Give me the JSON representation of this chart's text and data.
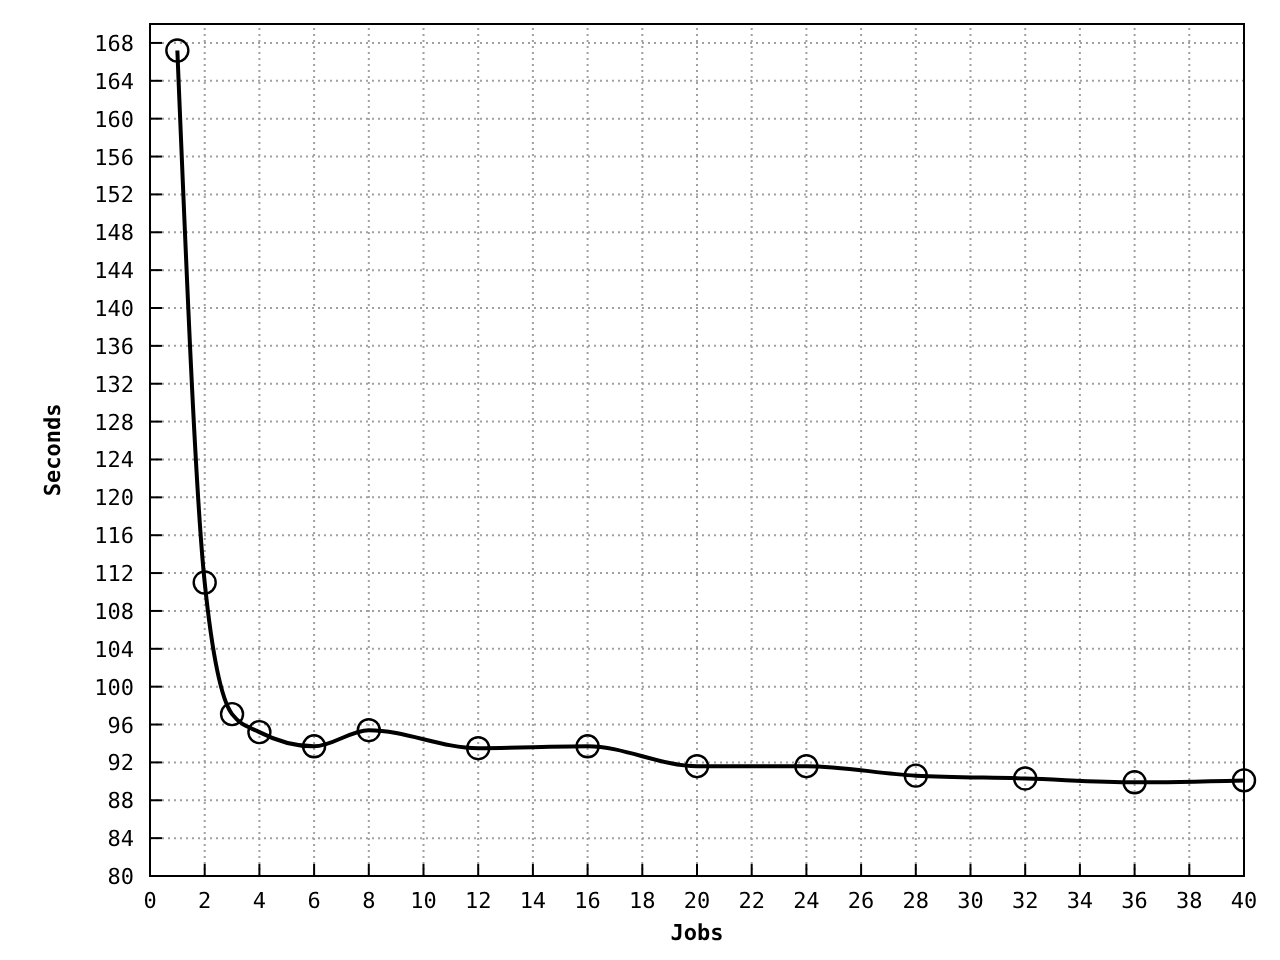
{
  "chart_data": {
    "type": "line",
    "xlabel": "Jobs",
    "ylabel": "Seconds",
    "x": [
      1,
      2,
      3,
      4,
      6,
      8,
      12,
      16,
      20,
      24,
      28,
      32,
      36,
      40
    ],
    "series": [
      {
        "color": "#000000",
        "values": [
          167.2,
          111.0,
          97.1,
          95.2,
          93.7,
          95.4,
          93.5,
          93.7,
          91.6,
          91.6,
          90.6,
          90.3,
          89.9,
          90.1
        ]
      }
    ],
    "xlim": [
      0,
      40
    ],
    "xticks": [
      0,
      2,
      4,
      6,
      8,
      10,
      12,
      14,
      16,
      18,
      20,
      22,
      24,
      26,
      28,
      30,
      32,
      34,
      36,
      38,
      40
    ],
    "ylim": [
      80,
      170
    ],
    "yticks": [
      80,
      84,
      88,
      92,
      96,
      100,
      104,
      108,
      112,
      116,
      120,
      124,
      128,
      132,
      136,
      140,
      144,
      148,
      152,
      156,
      160,
      164,
      168
    ],
    "grid": true,
    "marker": "circle",
    "line_style": "solid"
  }
}
